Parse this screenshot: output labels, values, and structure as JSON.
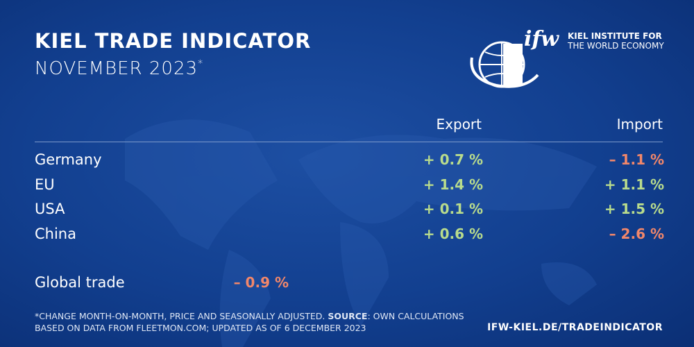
{
  "header": {
    "title": "KIEL TRADE INDICATOR",
    "subtitle": "NOVEMBER 2023",
    "subtitle_mark": "*"
  },
  "logo": {
    "mark": "ifw",
    "line1": "KIEL INSTITUTE FOR",
    "line2": "THE WORLD ECONOMY"
  },
  "table": {
    "columns": [
      "Export",
      "Import"
    ],
    "rows": [
      [
        "Germany",
        "+ 0.7 %",
        "– 1.1 %"
      ],
      [
        "EU",
        "+ 1.4 %",
        "+ 1.1 %"
      ],
      [
        "USA",
        "+ 0.1 %",
        "+ 1.5 %"
      ],
      [
        "China",
        "+ 0.6 %",
        "– 2.6 %"
      ]
    ]
  },
  "global": {
    "label": "Global trade",
    "value": "– 0.9 %"
  },
  "footnote": {
    "note": "*CHANGE MONTH-ON-MONTH, PRICE AND SEASONALLY ADJUSTED. ",
    "source_label": "SOURCE",
    "source": ": OWN CALCULATIONS BASED ON DATA FROM FLEETMON.COM; UPDATED AS OF 6 DECEMBER 2023"
  },
  "url": "IFW-KIEL.DE/TRADEINDICATOR",
  "colors": {
    "positive": "#b9dc8c",
    "negative": "#f2876a"
  }
}
